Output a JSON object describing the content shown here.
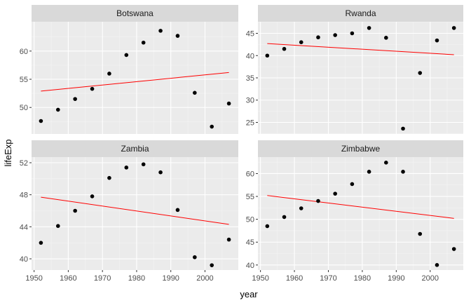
{
  "chart_data": {
    "type": "scatter",
    "xlabel": "year",
    "ylabel": "lifeExp",
    "x_ticks": [
      1950,
      1960,
      1970,
      1980,
      1990,
      2000
    ],
    "x_range": [
      1949.25,
      2009.75
    ],
    "colors": {
      "panel_bg": "#ebebeb",
      "strip_bg": "#d9d9d9",
      "grid_major": "#ffffff",
      "grid_minor": "#f4f4f4",
      "points": "#000000",
      "trend_line": "#ff0000"
    },
    "panels": [
      {
        "name": "Botswana",
        "ylim": [
          45.3,
          65.2
        ],
        "y_ticks": [
          50,
          55,
          60
        ],
        "x": [
          1952,
          1957,
          1962,
          1967,
          1972,
          1977,
          1982,
          1987,
          1992,
          1997,
          2002,
          2007
        ],
        "y": [
          47.6,
          49.6,
          51.5,
          53.3,
          56.0,
          59.3,
          61.5,
          63.6,
          62.7,
          52.6,
          46.6,
          50.7
        ],
        "trend": {
          "x": [
            1952,
            2007
          ],
          "y": [
            52.9,
            56.2
          ]
        }
      },
      {
        "name": "Rwanda",
        "ylim": [
          22.4,
          47.6
        ],
        "y_ticks": [
          25,
          30,
          35,
          40,
          45
        ],
        "x": [
          1952,
          1957,
          1962,
          1967,
          1972,
          1977,
          1982,
          1987,
          1992,
          1997,
          2002,
          2007
        ],
        "y": [
          40.0,
          41.5,
          43.0,
          44.1,
          44.6,
          45.0,
          46.2,
          44.0,
          23.6,
          36.1,
          43.4,
          46.2
        ],
        "trend": {
          "x": [
            1952,
            2007
          ],
          "y": [
            42.7,
            40.2
          ]
        }
      },
      {
        "name": "Zambia",
        "ylim": [
          38.6,
          52.7
        ],
        "y_ticks": [
          40,
          44,
          48,
          52
        ],
        "x": [
          1952,
          1957,
          1962,
          1967,
          1972,
          1977,
          1982,
          1987,
          1992,
          1997,
          2002,
          2007
        ],
        "y": [
          42.0,
          44.1,
          46.0,
          47.8,
          50.1,
          51.4,
          51.8,
          50.8,
          46.1,
          40.2,
          39.2,
          42.4
        ],
        "trend": {
          "x": [
            1952,
            2007
          ],
          "y": [
            47.7,
            44.3
          ]
        }
      },
      {
        "name": "Zimbabwe",
        "ylim": [
          38.9,
          63.6
        ],
        "y_ticks": [
          40,
          45,
          50,
          55,
          60
        ],
        "x": [
          1952,
          1957,
          1962,
          1967,
          1972,
          1977,
          1982,
          1987,
          1992,
          1997,
          2002,
          2007
        ],
        "y": [
          48.5,
          50.5,
          52.4,
          54.0,
          55.6,
          57.7,
          60.4,
          62.4,
          60.4,
          46.8,
          40.0,
          43.5
        ],
        "trend": {
          "x": [
            1952,
            2007
          ],
          "y": [
            55.2,
            50.2
          ]
        }
      }
    ]
  }
}
